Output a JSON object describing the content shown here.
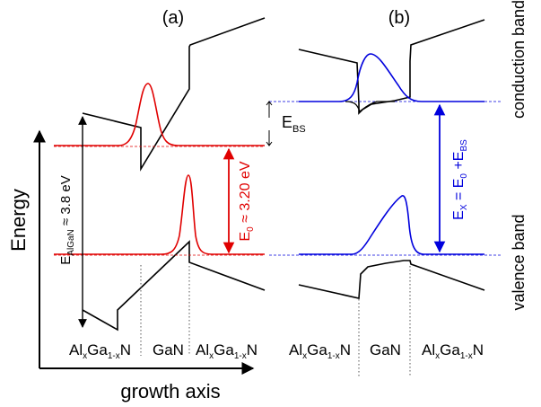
{
  "panels": {
    "a": {
      "label": "(a)"
    },
    "b": {
      "label": "(b)"
    }
  },
  "axes": {
    "y_label": "Energy",
    "x_label": "growth axis"
  },
  "annotations": {
    "band_gap": {
      "main": "E",
      "sub": "AlGaN",
      "tail": " ≈ 3.8 eV"
    },
    "e0": {
      "main": "E",
      "sub": "0",
      "tail": " ≈ 3.20 eV"
    },
    "ebs": {
      "main": "E",
      "sub": "BS"
    },
    "ex": {
      "p1": "E",
      "s1": "X",
      "p2": " = E",
      "s2": "0",
      "p3": " +E",
      "s3": "BS"
    }
  },
  "band_labels": {
    "conduction": "conduction band",
    "valence": "valence band"
  },
  "regions": {
    "al": {
      "a1": "Al",
      "s1": "x",
      "a2": "Ga",
      "s2": "1-x",
      "a3": "N"
    },
    "gan": "GaN"
  },
  "colors": {
    "red": "#e00000",
    "blue": "#0000dd",
    "black": "#000000"
  }
}
